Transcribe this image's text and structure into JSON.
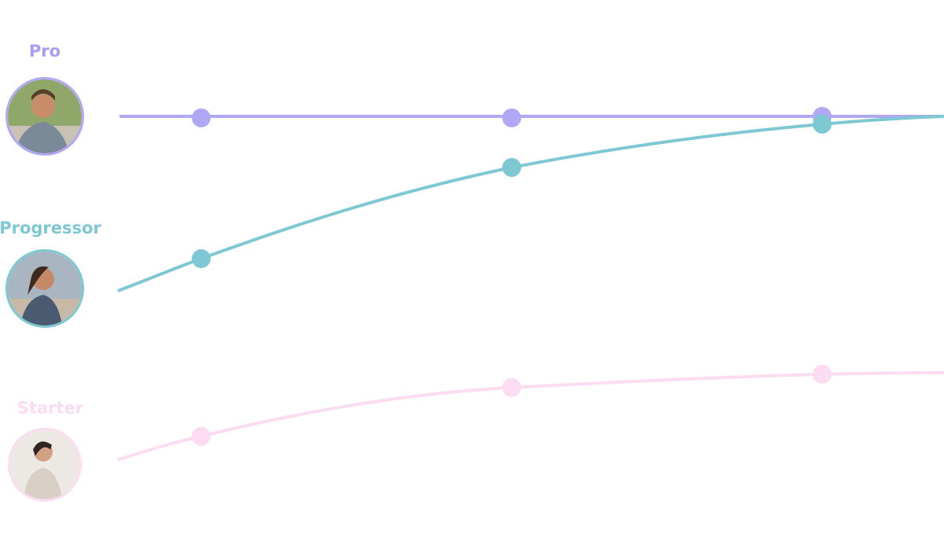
{
  "personas": [
    {
      "label": "Pro"
    },
    {
      "label": "Progressor"
    },
    {
      "label": "Starter"
    }
  ]
}
